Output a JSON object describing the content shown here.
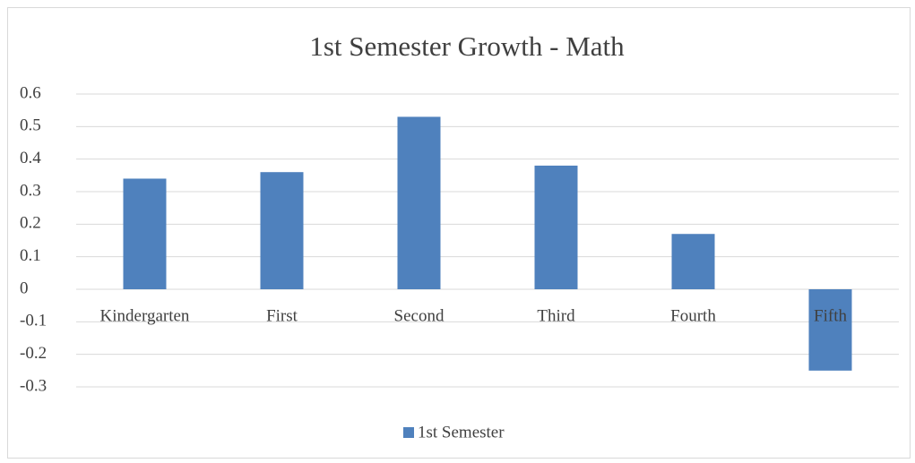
{
  "chart_data": {
    "type": "bar",
    "title": "1st Semester Growth - Math",
    "categories": [
      "Kindergarten",
      "First",
      "Second",
      "Third",
      "Fourth",
      "Fifth"
    ],
    "series": [
      {
        "name": "1st Semester",
        "color": "#4f81bd",
        "values": [
          0.34,
          0.36,
          0.53,
          0.38,
          0.17,
          -0.25
        ]
      }
    ],
    "ylim": [
      -0.3,
      0.6
    ],
    "yticks": [
      -0.3,
      -0.2,
      -0.1,
      0,
      0.1,
      0.2,
      0.3,
      0.4,
      0.5,
      0.6
    ],
    "grid": true,
    "legend": "bottom"
  }
}
